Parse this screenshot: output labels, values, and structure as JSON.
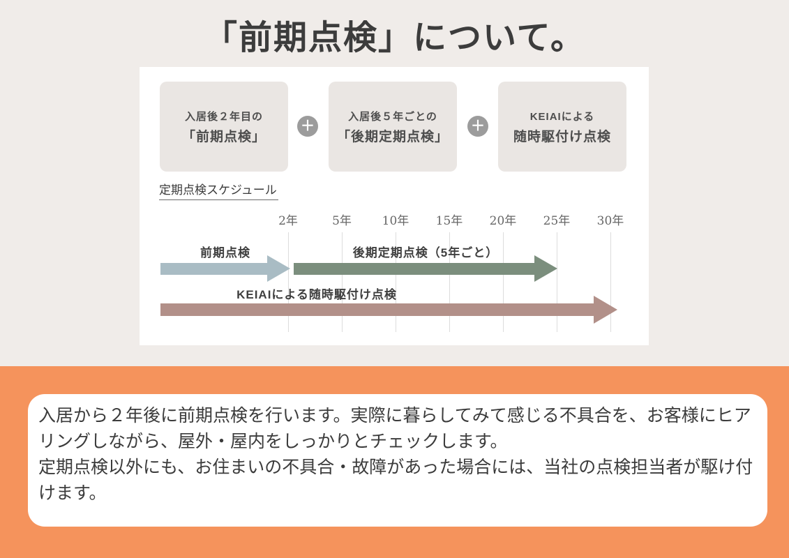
{
  "page": {
    "title": "「前期点検」について。"
  },
  "flow": {
    "plus_symbol": "＋",
    "boxes": [
      {
        "line1": "入居後２年目の",
        "line2": "「前期点検」"
      },
      {
        "line1": "入居後５年ごとの",
        "line2": "「後期定期点検」"
      },
      {
        "line1": "KEIAIによる",
        "line2": "随時駆付け点検"
      }
    ]
  },
  "schedule": {
    "heading": "定期点検スケジュール",
    "ticks": [
      "2年",
      "5年",
      "10年",
      "15年",
      "20年",
      "25年",
      "30年"
    ],
    "arrows": [
      {
        "label": "前期点検",
        "color": "#a9bcc4",
        "starts_at": "入居",
        "ends_at": "2年"
      },
      {
        "label": "後期定期点検（5年ごと）",
        "color": "#7b8e7d",
        "starts_at": "2年",
        "ends_at": "25年"
      },
      {
        "label": "KEIAIによる随時駆付け点検",
        "color": "#b29089",
        "starts_at": "入居",
        "ends_at": "30年"
      }
    ]
  },
  "description": {
    "text": "入居から２年後に前期点検を行います。実際に暮らしてみて感じる不具合を、お客様にヒア\nリングしながら、屋外・屋内をしっかりとチェックします。\n定期点検以外にも、お住まいの不具合・故障があった場合には、当社の点検担当者が駆け付\nけます。"
  },
  "colors": {
    "page_bg": "#f0ece9",
    "panel_bg": "#ffffff",
    "box_bg": "#eae6e3",
    "box_text": "#4d4d4d",
    "plus_bg": "#9c9c9c",
    "title_color": "#3c3c3c",
    "serif_dark": "#3a3a3a",
    "serif_gray": "#666666",
    "tick_line": "#dcdcdc",
    "label_dark": "#3f3f3f",
    "orange_bg": "#f5935c",
    "desc_box_bg": "#ffffff",
    "desc_text": "#3b3b3b"
  }
}
